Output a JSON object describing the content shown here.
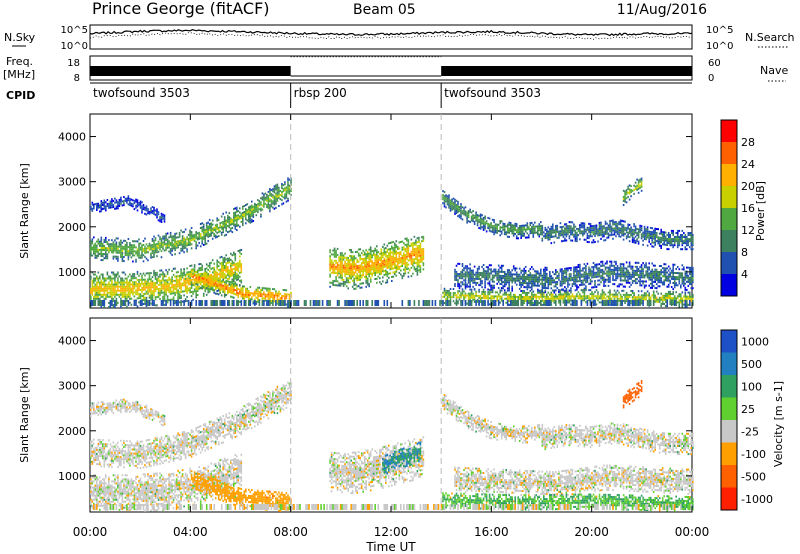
{
  "header": {
    "station": "Prince George (fitACF)",
    "beam": "Beam 05",
    "date": "11/Aug/2016"
  },
  "noise_panel": {
    "left_label": "N.Sky",
    "right_label": "N.Search",
    "left_ticks": [
      "10^5",
      "10^0"
    ],
    "right_ticks": [
      "10^5",
      "10^0"
    ]
  },
  "freq_panel": {
    "left_label_1": "Freq.",
    "left_label_2": "[MHz]",
    "right_label": "Nave",
    "left_ticks": [
      "18",
      "8"
    ],
    "right_ticks": [
      "60",
      "0"
    ]
  },
  "cpid_panel": {
    "label": "CPID",
    "segments": [
      {
        "name": "twofsound 3503",
        "start_hr": 0,
        "end_hr": 8
      },
      {
        "name": "rbsp 200",
        "start_hr": 8,
        "end_hr": 14
      },
      {
        "name": "twofsound 3503",
        "start_hr": 14,
        "end_hr": 24
      }
    ]
  },
  "time_axis": {
    "label": "Time UT",
    "ticks": [
      "00:00",
      "04:00",
      "08:00",
      "12:00",
      "16:00",
      "20:00",
      "00:00"
    ]
  },
  "colors": {
    "power_scale": [
      "#0000e0",
      "#2050b0",
      "#3c8060",
      "#50a840",
      "#c8d000",
      "#ffb000",
      "#ff6000",
      "#ff0000"
    ],
    "velocity_scale": [
      "#1e50c8",
      "#2080c0",
      "#30a060",
      "#60d030",
      "#c8c8c8",
      "#ffa000",
      "#ff6000",
      "#ff2000"
    ]
  },
  "chart_data": [
    {
      "type": "heatmap",
      "title": "Power",
      "ylabel": "Slant Range [km]",
      "xlabel": "",
      "xlim": [
        0,
        24
      ],
      "ylim": [
        200,
        4500
      ],
      "y_ticks": [
        1000,
        2000,
        3000,
        4000
      ],
      "colorbar_label": "Power [dB]",
      "colorbar_ticks": [
        28,
        24,
        20,
        16,
        12,
        8,
        4
      ],
      "colorbar_unit_text": "Power [dB]",
      "bands": [
        {
          "x": [
            0.0,
            2.0,
            4.0,
            6.0,
            8.0
          ],
          "y": [
            1500,
            1450,
            1700,
            2200,
            2850
          ],
          "width_km": 250,
          "level": 18
        },
        {
          "x": [
            0.0,
            1.5,
            2.5,
            3.0
          ],
          "y": [
            2400,
            2550,
            2300,
            2150
          ],
          "width_km": 120,
          "level": 9
        },
        {
          "x": [
            0.0,
            1.5,
            3.0,
            4.5,
            5.5,
            6.0
          ],
          "y": [
            600,
            600,
            650,
            800,
            1000,
            1100
          ],
          "width_km": 400,
          "level": 23
        },
        {
          "x": [
            4.0,
            5.0,
            6.0,
            7.0,
            8.0
          ],
          "y": [
            900,
            700,
            500,
            450,
            400
          ],
          "width_km": 200,
          "level": 27
        },
        {
          "x": [
            9.5,
            10.5,
            11.5,
            12.5,
            13.3
          ],
          "y": [
            1100,
            1050,
            1150,
            1300,
            1400
          ],
          "width_km": 450,
          "level": 25
        },
        {
          "x": [
            14.0,
            15.0,
            16.0,
            17.0,
            18.0
          ],
          "y": [
            2650,
            2250,
            2000,
            1900,
            1950
          ],
          "width_km": 180,
          "level": 15
        },
        {
          "x": [
            18.0,
            19.0,
            20.0,
            21.0,
            22.0,
            23.0,
            24.0
          ],
          "y": [
            1800,
            1900,
            1850,
            1950,
            1800,
            1700,
            1700
          ],
          "width_km": 220,
          "level": 12
        },
        {
          "x": [
            14.5,
            16.5,
            18.5,
            20.5,
            22.5,
            24.0
          ],
          "y": [
            900,
            850,
            800,
            950,
            900,
            850
          ],
          "width_km": 280,
          "level": 12
        },
        {
          "x": [
            14.0,
            17.0,
            20.0,
            23.0,
            24.0
          ],
          "y": [
            450,
            400,
            420,
            380,
            360
          ],
          "width_km": 160,
          "level": 21
        },
        {
          "x": [
            21.2,
            21.6,
            22.0
          ],
          "y": [
            2600,
            2800,
            2950
          ],
          "width_km": 160,
          "level": 20
        }
      ]
    },
    {
      "type": "heatmap",
      "title": "Velocity",
      "ylabel": "Slant Range [km]",
      "xlabel": "Time UT",
      "xlim": [
        0,
        24
      ],
      "ylim": [
        200,
        4500
      ],
      "y_ticks": [
        1000,
        2000,
        3000,
        4000
      ],
      "colorbar_label": "Velocity [m s-1]",
      "colorbar_ticks": [
        1000,
        500,
        100,
        25,
        -25,
        -100,
        -500,
        -1000
      ],
      "bands": [
        {
          "x": [
            0.0,
            2.0,
            4.0,
            6.0,
            8.0
          ],
          "y": [
            1500,
            1450,
            1700,
            2200,
            2850
          ],
          "width_km": 300,
          "level": 0
        },
        {
          "x": [
            0.0,
            1.5,
            2.5,
            3.0
          ],
          "y": [
            2450,
            2550,
            2350,
            2200
          ],
          "width_km": 140,
          "level": 0
        },
        {
          "x": [
            0.0,
            1.5,
            3.0,
            4.5,
            5.5,
            6.0
          ],
          "y": [
            600,
            600,
            650,
            800,
            1000,
            1100
          ],
          "width_km": 420,
          "level": 0
        },
        {
          "x": [
            4.0,
            5.0,
            6.0,
            7.0,
            8.0
          ],
          "y": [
            900,
            700,
            500,
            450,
            400
          ],
          "width_km": 220,
          "level": -150
        },
        {
          "x": [
            9.5,
            10.5,
            11.5,
            12.5,
            13.3
          ],
          "y": [
            1100,
            1050,
            1150,
            1300,
            1400
          ],
          "width_km": 460,
          "level": 0
        },
        {
          "x": [
            11.6,
            12.2,
            12.8,
            13.2
          ],
          "y": [
            1200,
            1350,
            1450,
            1550
          ],
          "width_km": 220,
          "level": 300
        },
        {
          "x": [
            14.0,
            15.0,
            16.0,
            17.0,
            18.0
          ],
          "y": [
            2650,
            2250,
            2000,
            1900,
            1950
          ],
          "width_km": 200,
          "level": 0
        },
        {
          "x": [
            18.0,
            19.0,
            20.0,
            21.0,
            22.0,
            23.0,
            24.0
          ],
          "y": [
            1800,
            1900,
            1850,
            1950,
            1800,
            1700,
            1700
          ],
          "width_km": 240,
          "level": 0
        },
        {
          "x": [
            14.5,
            16.5,
            18.5,
            20.5,
            22.5,
            24.0
          ],
          "y": [
            900,
            850,
            800,
            950,
            900,
            850
          ],
          "width_km": 280,
          "level": 0
        },
        {
          "x": [
            14.0,
            17.0,
            20.0,
            23.0,
            24.0
          ],
          "y": [
            450,
            400,
            420,
            380,
            360
          ],
          "width_km": 170,
          "level": 60
        },
        {
          "x": [
            21.2,
            21.6,
            22.0
          ],
          "y": [
            2600,
            2800,
            2950
          ],
          "width_km": 170,
          "level": -700
        }
      ]
    }
  ],
  "timeseries": {
    "noise": {
      "x": [
        0,
        2,
        4,
        6,
        8,
        10,
        12,
        14,
        16,
        18,
        20,
        22,
        24
      ],
      "sky": [
        3.4,
        4.0,
        4.2,
        3.9,
        3.5,
        3.2,
        3.3,
        3.7,
        3.9,
        3.5,
        3.1,
        3.4,
        3.4
      ],
      "search": [
        2.6,
        3.2,
        3.4,
        3.1,
        2.7,
        2.4,
        2.5,
        2.9,
        3.1,
        2.7,
        2.3,
        2.6,
        2.6
      ]
    },
    "nave_rbsp": {
      "start_hr": 8,
      "end_hr": 14,
      "value": 58
    }
  }
}
